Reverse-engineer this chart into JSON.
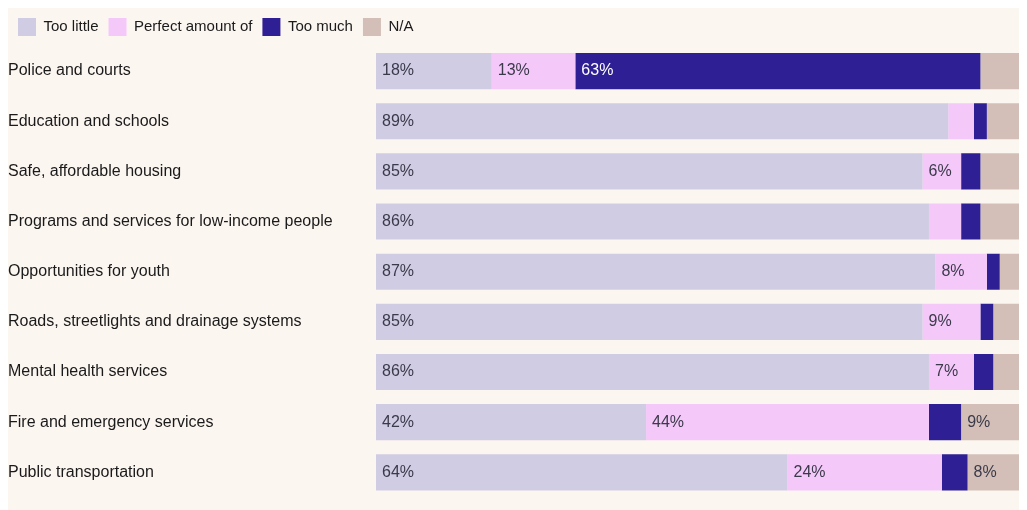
{
  "chart_data": {
    "type": "bar",
    "orientation": "horizontal",
    "stacked": true,
    "legend": "top left",
    "tick_labels": "y",
    "xlim": [
      0,
      100
    ],
    "categories": [
      "Police and courts",
      "Education and schools",
      "Safe, affordable housing",
      "Programs and services for low-income people",
      "Opportunities for youth",
      "Roads, streetlights and drainage systems",
      "Mental health services",
      "Fire and emergency services",
      "Public transportation"
    ],
    "series": [
      {
        "name": "Too little",
        "color": "#d0cce3",
        "values": [
          18,
          89,
          85,
          86,
          87,
          85,
          86,
          42,
          64
        ],
        "value_labels": [
          "18%",
          "89%",
          "85%",
          "86%",
          "87%",
          "85%",
          "86%",
          "42%",
          "64%"
        ]
      },
      {
        "name": "Perfect amount of",
        "color": "#f5c8fa",
        "values": [
          13,
          4,
          6,
          5,
          8,
          9,
          7,
          44,
          24
        ],
        "value_labels": [
          "13%",
          null,
          "6%",
          null,
          "8%",
          "9%",
          "7%",
          "44%",
          "24%"
        ]
      },
      {
        "name": "Too much",
        "color": "#2e1f94",
        "values": [
          63,
          2,
          3,
          3,
          2,
          2,
          3,
          5,
          4
        ],
        "value_labels": [
          "63%",
          null,
          null,
          null,
          null,
          null,
          null,
          null,
          null
        ]
      },
      {
        "name": "N/A",
        "color": "#d3bfb8",
        "values": [
          6,
          5,
          6,
          6,
          3,
          4,
          4,
          9,
          8
        ],
        "value_labels": [
          null,
          null,
          null,
          null,
          null,
          null,
          null,
          "9%",
          "8%"
        ]
      }
    ]
  }
}
